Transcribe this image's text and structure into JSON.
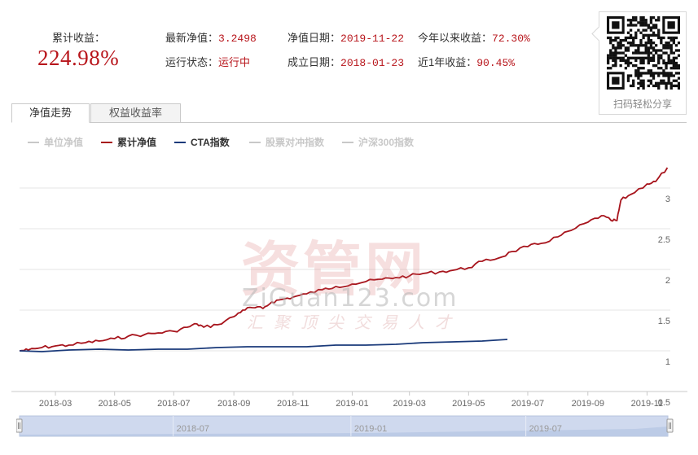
{
  "stats": {
    "cumulative_label": "累计收益：",
    "cumulative_value": "224.98%",
    "latest_nav_label": "最新净值：",
    "latest_nav_value": "3.2498",
    "nav_date_label": "净值日期：",
    "nav_date_value": "2019-11-22",
    "ytd_label": "今年以来收益：",
    "ytd_value": "72.30%",
    "status_label": "运行状态：",
    "status_value": "运行中",
    "inception_label": "成立日期：",
    "inception_value": "2018-01-23",
    "one_year_label": "近1年收益：",
    "one_year_value": "90.45%"
  },
  "qr": {
    "caption": "扫码轻松分享",
    "icon": "qr-code-icon"
  },
  "tabs": [
    {
      "label": "净值走势",
      "active": true
    },
    {
      "label": "权益收益率",
      "active": false
    }
  ],
  "watermark": {
    "title": "资管网",
    "url": "ZiGuan123.com",
    "slogan": "汇聚顶尖交易人才"
  },
  "colors": {
    "accent": "#b8161c",
    "nav_line": "#a7141c",
    "cta_line": "#1a3a7a",
    "disabled": "#c8c8c8",
    "grid": "#e6e6e6",
    "navigator_fill": "#cfd9ee"
  },
  "chart_data": {
    "type": "line",
    "legend_position": "top-left",
    "grid": true,
    "ylim": [
      0.5,
      3.25
    ],
    "xlim": [
      "2018-01-23",
      "2019-11-25"
    ],
    "y_ticks": [
      "0.5",
      "1",
      "1.5",
      "2",
      "2.5",
      "3"
    ],
    "x_ticks": [
      "2018-03",
      "2018-05",
      "2018-07",
      "2018-09",
      "2018-11",
      "2019-01",
      "2019-03",
      "2019-05",
      "2019-07",
      "2019-09",
      "2019-11"
    ],
    "series": [
      {
        "name": "单位净值",
        "visible": false,
        "color": "#c8c8c8",
        "points": []
      },
      {
        "name": "累计净值",
        "visible": true,
        "color": "#a7141c",
        "points": [
          [
            "2018-01-23",
            1.0
          ],
          [
            "2018-02-01",
            1.01
          ],
          [
            "2018-02-15",
            1.04
          ],
          [
            "2018-03-01",
            1.06
          ],
          [
            "2018-03-15",
            1.07
          ],
          [
            "2018-04-01",
            1.1
          ],
          [
            "2018-04-15",
            1.12
          ],
          [
            "2018-05-01",
            1.15
          ],
          [
            "2018-05-15",
            1.18
          ],
          [
            "2018-06-01",
            1.2
          ],
          [
            "2018-06-15",
            1.22
          ],
          [
            "2018-07-01",
            1.24
          ],
          [
            "2018-07-15",
            1.29
          ],
          [
            "2018-07-25",
            1.33
          ],
          [
            "2018-08-01",
            1.29
          ],
          [
            "2018-08-15",
            1.32
          ],
          [
            "2018-09-01",
            1.42
          ],
          [
            "2018-09-10",
            1.5
          ],
          [
            "2018-09-20",
            1.53
          ],
          [
            "2018-10-01",
            1.52
          ],
          [
            "2018-10-10",
            1.6
          ],
          [
            "2018-10-20",
            1.63
          ],
          [
            "2018-11-01",
            1.66
          ],
          [
            "2018-11-15",
            1.7
          ],
          [
            "2018-12-01",
            1.75
          ],
          [
            "2018-12-15",
            1.79
          ],
          [
            "2019-01-01",
            1.82
          ],
          [
            "2019-01-15",
            1.85
          ],
          [
            "2019-02-01",
            1.88
          ],
          [
            "2019-02-15",
            1.9
          ],
          [
            "2019-03-01",
            1.92
          ],
          [
            "2019-03-15",
            1.95
          ],
          [
            "2019-04-01",
            1.97
          ],
          [
            "2019-04-15",
            1.99
          ],
          [
            "2019-05-01",
            2.02
          ],
          [
            "2019-05-15",
            2.1
          ],
          [
            "2019-06-01",
            2.14
          ],
          [
            "2019-06-15",
            2.22
          ],
          [
            "2019-07-01",
            2.28
          ],
          [
            "2019-07-15",
            2.32
          ],
          [
            "2019-08-01",
            2.4
          ],
          [
            "2019-08-15",
            2.48
          ],
          [
            "2019-09-01",
            2.58
          ],
          [
            "2019-09-15",
            2.66
          ],
          [
            "2019-09-25",
            2.6
          ],
          [
            "2019-10-01",
            2.6
          ],
          [
            "2019-10-05",
            2.85
          ],
          [
            "2019-10-15",
            2.92
          ],
          [
            "2019-11-01",
            3.05
          ],
          [
            "2019-11-10",
            3.08
          ],
          [
            "2019-11-22",
            3.25
          ]
        ]
      },
      {
        "name": "CTA指数",
        "visible": true,
        "color": "#1a3a7a",
        "points": [
          [
            "2018-01-23",
            1.0
          ],
          [
            "2018-02-15",
            0.99
          ],
          [
            "2018-03-15",
            1.01
          ],
          [
            "2018-04-15",
            1.02
          ],
          [
            "2018-05-15",
            1.01
          ],
          [
            "2018-06-15",
            1.02
          ],
          [
            "2018-07-15",
            1.02
          ],
          [
            "2018-08-15",
            1.04
          ],
          [
            "2018-09-15",
            1.05
          ],
          [
            "2018-10-15",
            1.05
          ],
          [
            "2018-11-15",
            1.05
          ],
          [
            "2018-12-15",
            1.07
          ],
          [
            "2019-01-15",
            1.07
          ],
          [
            "2019-02-15",
            1.08
          ],
          [
            "2019-03-15",
            1.1
          ],
          [
            "2019-04-15",
            1.11
          ],
          [
            "2019-05-15",
            1.12
          ],
          [
            "2019-06-10",
            1.14
          ]
        ]
      },
      {
        "name": "股票对冲指数",
        "visible": false,
        "color": "#c8c8c8",
        "points": []
      },
      {
        "name": "沪深300指数",
        "visible": false,
        "color": "#c8c8c8",
        "points": []
      }
    ],
    "navigator": {
      "labels": [
        "2018-07",
        "2019-01",
        "2019-07"
      ],
      "label_positions": [
        "2018-07-01",
        "2019-01-01",
        "2019-07-01"
      ]
    }
  }
}
